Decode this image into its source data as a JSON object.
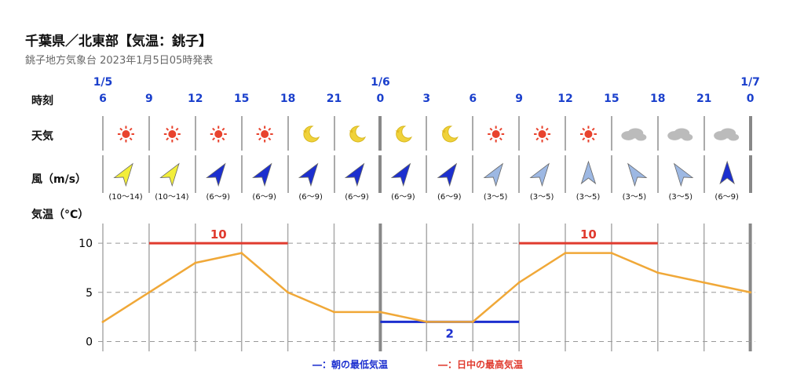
{
  "header": {
    "title": "千葉県／北東部【気温：銚子】",
    "subtitle": "銚子地方気象台 2023年1月5日05時発表"
  },
  "labels": {
    "time": "時刻",
    "weather": "天気",
    "wind": "風（m/s）",
    "temp": "気温（°C）"
  },
  "dates": [
    "1/5",
    "1/6",
    "1/7"
  ],
  "hours": [
    "6",
    "9",
    "12",
    "15",
    "18",
    "21",
    "0",
    "3",
    "6",
    "9",
    "12",
    "15",
    "18",
    "21",
    "0"
  ],
  "weather_icons": [
    "sun-icon",
    "sun-icon",
    "sun-icon",
    "sun-icon",
    "moon-icon",
    "moon-icon",
    "moon-icon",
    "moon-icon",
    "sun-icon",
    "sun-icon",
    "sun-icon",
    "cloud-icon",
    "cloud-icon",
    "cloud-icon"
  ],
  "wind": [
    {
      "dir": "NW",
      "speed": "(10〜14)",
      "color": "#f2ee3a"
    },
    {
      "dir": "NW",
      "speed": "(10〜14)",
      "color": "#f2ee3a"
    },
    {
      "dir": "NW",
      "speed": "(6〜9)",
      "color": "#1c2fcf"
    },
    {
      "dir": "NW",
      "speed": "(6〜9)",
      "color": "#1c2fcf"
    },
    {
      "dir": "NW",
      "speed": "(6〜9)",
      "color": "#1c2fcf"
    },
    {
      "dir": "NW",
      "speed": "(6〜9)",
      "color": "#1c2fcf"
    },
    {
      "dir": "NW",
      "speed": "(6〜9)",
      "color": "#1c2fcf"
    },
    {
      "dir": "NW",
      "speed": "(6〜9)",
      "color": "#1c2fcf"
    },
    {
      "dir": "NW",
      "speed": "(3〜5)",
      "color": "#9db8e3"
    },
    {
      "dir": "NW",
      "speed": "(3〜5)",
      "color": "#9db8e3"
    },
    {
      "dir": "N",
      "speed": "(3〜5)",
      "color": "#9db8e3"
    },
    {
      "dir": "NE",
      "speed": "(3〜5)",
      "color": "#9db8e3"
    },
    {
      "dir": "NE",
      "speed": "(3〜5)",
      "color": "#9db8e3"
    },
    {
      "dir": "N",
      "speed": "(6〜9)",
      "color": "#1c2fcf"
    }
  ],
  "legend": {
    "min": "―：朝の最低気温",
    "max": "―：日中の最高気温"
  },
  "colors": {
    "line": "#f0a838",
    "max": "#e03a2e",
    "min": "#1c2fcf",
    "date": "#1a3fcc"
  },
  "chart_data": {
    "type": "line",
    "x": [
      "6",
      "9",
      "12",
      "15",
      "18",
      "21",
      "0",
      "3",
      "6",
      "9",
      "12",
      "15",
      "18",
      "21",
      "0"
    ],
    "series": [
      {
        "values": [
          2,
          5,
          8,
          9,
          5,
          3,
          3,
          2,
          2,
          6,
          9,
          9,
          7,
          6,
          5
        ]
      }
    ],
    "ylim": [
      -1,
      12
    ],
    "yticks": [
      0,
      5,
      10
    ],
    "annotations": {
      "max": [
        {
          "from": 1,
          "to": 4,
          "value": 10
        },
        {
          "from": 9,
          "to": 12,
          "value": 10
        }
      ],
      "min": [
        {
          "from": 6,
          "to": 9,
          "value": 2
        }
      ]
    },
    "grid": true
  }
}
